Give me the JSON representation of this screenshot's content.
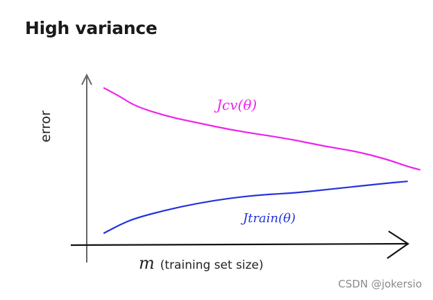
{
  "title": "High variance",
  "watermark": "CSDN @jokersio",
  "chart_data": {
    "type": "line",
    "ylabel": "error",
    "xlabel_symbol": "m",
    "xlabel_text": "(training set size)",
    "grid": false,
    "ticks": false,
    "xlim": [
      0,
      1
    ],
    "ylim": [
      0,
      1
    ],
    "series": [
      {
        "name": "Jcv(θ)",
        "color": "#ee22ee",
        "x": [
          0.0,
          0.05,
          0.1,
          0.2,
          0.3,
          0.4,
          0.5,
          0.6,
          0.7,
          0.8,
          0.9,
          0.96,
          1.0
        ],
        "y": [
          0.93,
          0.88,
          0.82,
          0.76,
          0.72,
          0.68,
          0.65,
          0.62,
          0.58,
          0.55,
          0.5,
          0.46,
          0.44
        ]
      },
      {
        "name": "Jtrain(θ)",
        "color": "#2233dd",
        "x": [
          0.0,
          0.05,
          0.1,
          0.2,
          0.3,
          0.4,
          0.5,
          0.6,
          0.7,
          0.8,
          0.9,
          0.96
        ],
        "y": [
          0.06,
          0.11,
          0.15,
          0.2,
          0.24,
          0.27,
          0.29,
          0.3,
          0.32,
          0.34,
          0.36,
          0.37
        ]
      }
    ]
  }
}
